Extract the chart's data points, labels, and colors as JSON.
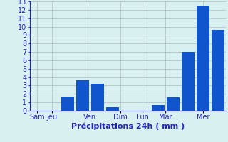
{
  "xlabel": "Précipitations 24h ( mm )",
  "ylim": [
    0,
    13
  ],
  "yticks": [
    0,
    1,
    2,
    3,
    4,
    5,
    6,
    7,
    8,
    9,
    10,
    11,
    12,
    13
  ],
  "background_color": "#d8f0f0",
  "grid_color": "#aabcbc",
  "bars": [
    {
      "x": 1,
      "height": 0.0,
      "color": "#1155cc"
    },
    {
      "x": 2,
      "height": 0.0,
      "color": "#1155cc"
    },
    {
      "x": 3,
      "height": 1.7,
      "color": "#1155cc"
    },
    {
      "x": 4,
      "height": 3.6,
      "color": "#1155cc"
    },
    {
      "x": 5,
      "height": 3.2,
      "color": "#1155cc"
    },
    {
      "x": 6,
      "height": 0.4,
      "color": "#1155cc"
    },
    {
      "x": 7,
      "height": 0.0,
      "color": "#1155cc"
    },
    {
      "x": 8,
      "height": 0.0,
      "color": "#1155cc"
    },
    {
      "x": 9,
      "height": 0.7,
      "color": "#1155cc"
    },
    {
      "x": 10,
      "height": 1.6,
      "color": "#1155cc"
    },
    {
      "x": 11,
      "height": 7.0,
      "color": "#1155cc"
    },
    {
      "x": 12,
      "height": 12.5,
      "color": "#1155cc"
    },
    {
      "x": 13,
      "height": 9.6,
      "color": "#1155cc"
    }
  ],
  "day_tick_positions": [
    1,
    2,
    4.5,
    6.5,
    8,
    9.5,
    12
  ],
  "day_labels": [
    "Sam",
    "Jeu",
    "Ven",
    "Dim",
    "Lun",
    "Mar",
    "Mer"
  ],
  "bar_width": 0.85,
  "text_color": "#2222cc",
  "xlabel_fontsize": 8,
  "tick_fontsize": 7,
  "xlim": [
    0.5,
    13.5
  ]
}
